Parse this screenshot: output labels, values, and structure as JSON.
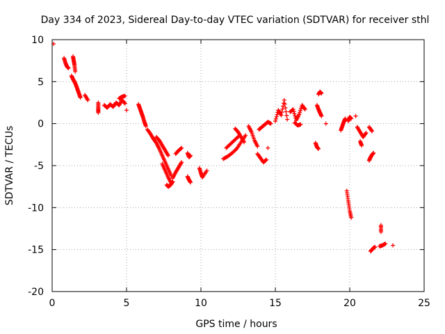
{
  "chart_data": {
    "type": "scatter",
    "title": "Day 334 of 2023, Sidereal Day-to-day VTEC variation (SDTVAR) for receiver sthl",
    "xlabel": "GPS time / hours",
    "ylabel": "SDTVAR / TECUs",
    "xlim": [
      0,
      25
    ],
    "ylim": [
      -20,
      10
    ],
    "xticks": [
      0,
      5,
      10,
      15,
      20,
      25
    ],
    "yticks": [
      -20,
      -15,
      -10,
      -5,
      0,
      5,
      10
    ],
    "grid": true,
    "marker": "+",
    "color": "#ff0000",
    "segments": [
      {
        "x": [
          0.1
        ],
        "y": [
          9.5
        ]
      },
      {
        "x": [
          0.8,
          0.9,
          1.0,
          1.1
        ],
        "y": [
          7.8,
          7.2,
          6.8,
          6.6
        ]
      },
      {
        "x": [
          1.3,
          1.4,
          1.5,
          1.6,
          1.7,
          1.8,
          1.9
        ],
        "y": [
          5.7,
          5.3,
          5.0,
          4.6,
          4.1,
          3.6,
          3.1
        ]
      },
      {
        "x": [
          1.4,
          1.45,
          1.5,
          1.55
        ],
        "y": [
          8.0,
          7.5,
          7.0,
          6.2
        ]
      },
      {
        "x": [
          2.2,
          2.4
        ],
        "y": [
          3.4,
          2.8
        ]
      },
      {
        "x": [
          3.1,
          3.1,
          3.1
        ],
        "y": [
          2.5,
          1.8,
          1.3
        ]
      },
      {
        "x": [
          3.5,
          3.7,
          3.9,
          4.1,
          4.3,
          4.5,
          4.7,
          4.9
        ],
        "y": [
          2.2,
          1.9,
          2.3,
          2.0,
          2.5,
          2.2,
          2.8,
          2.4
        ]
      },
      {
        "x": [
          4.5,
          4.7,
          4.9
        ],
        "y": [
          3.0,
          3.2,
          3.3
        ]
      },
      {
        "x": [
          5.0
        ],
        "y": [
          1.6
        ]
      },
      {
        "x": [
          5.8,
          5.9,
          6.0,
          6.1,
          6.2,
          6.3
        ],
        "y": [
          2.3,
          1.8,
          1.3,
          0.8,
          0.2,
          -0.3
        ]
      },
      {
        "x": [
          6.4,
          6.6,
          6.8,
          7.0,
          7.2,
          7.4,
          7.6,
          7.8,
          8.0
        ],
        "y": [
          -0.7,
          -1.2,
          -1.8,
          -2.3,
          -3.0,
          -3.8,
          -4.6,
          -5.4,
          -6.2
        ]
      },
      {
        "x": [
          7.0,
          7.2,
          7.4,
          7.6,
          7.8
        ],
        "y": [
          -1.6,
          -2.0,
          -2.6,
          -3.2,
          -3.8
        ]
      },
      {
        "x": [
          7.4,
          7.6,
          7.8,
          8.0
        ],
        "y": [
          -4.8,
          -5.6,
          -6.4,
          -7.1
        ]
      },
      {
        "x": [
          7.7,
          7.8,
          7.9,
          8.0,
          8.1
        ],
        "y": [
          -7.3,
          -7.5,
          -7.4,
          -7.2,
          -6.9
        ]
      },
      {
        "x": [
          8.1,
          8.3,
          8.5,
          8.7
        ],
        "y": [
          -6.5,
          -5.8,
          -5.2,
          -4.6
        ]
      },
      {
        "x": [
          8.3,
          8.5,
          8.7
        ],
        "y": [
          -3.6,
          -3.2,
          -2.9
        ]
      },
      {
        "x": [
          9.1,
          9.2,
          9.3
        ],
        "y": [
          -3.5,
          -4.0,
          -3.8
        ]
      },
      {
        "x": [
          9.1,
          9.2,
          9.3
        ],
        "y": [
          -6.3,
          -6.7,
          -7.0
        ]
      },
      {
        "x": [
          9.9,
          10.0,
          10.1,
          10.4
        ],
        "y": [
          -5.3,
          -5.9,
          -6.4,
          -5.6
        ]
      },
      {
        "x": [
          11.5,
          11.8,
          12.1,
          12.4,
          12.7,
          13.0
        ],
        "y": [
          -4.2,
          -3.9,
          -3.5,
          -3.0,
          -2.2,
          -1.4
        ]
      },
      {
        "x": [
          11.7,
          12.0,
          12.3,
          12.6
        ],
        "y": [
          -2.9,
          -2.4,
          -1.9,
          -1.4
        ]
      },
      {
        "x": [
          12.3,
          12.5,
          12.7,
          12.9
        ],
        "y": [
          -0.6,
          -1.0,
          -1.6,
          -2.2
        ]
      },
      {
        "x": [
          13.2,
          13.4,
          13.6,
          13.8
        ],
        "y": [
          -0.3,
          -1.0,
          -2.0,
          -2.7
        ]
      },
      {
        "x": [
          13.8,
          14.0,
          14.2,
          14.4
        ],
        "y": [
          -3.6,
          -4.1,
          -4.6,
          -4.3
        ]
      },
      {
        "x": [
          13.9,
          14.1,
          14.3,
          14.5,
          14.7
        ],
        "y": [
          -0.7,
          -0.4,
          -0.1,
          0.2,
          0.0
        ]
      },
      {
        "x": [
          14.5
        ],
        "y": [
          -2.9
        ]
      },
      {
        "x": [
          15.0,
          15.2,
          15.4,
          15.6,
          15.8
        ],
        "y": [
          0.3,
          1.6,
          1.0,
          2.8,
          0.5
        ]
      },
      {
        "x": [
          16.0,
          16.2,
          16.4,
          16.6,
          16.8,
          17.0
        ],
        "y": [
          1.4,
          1.7,
          0.4,
          1.1,
          2.2,
          1.7
        ]
      },
      {
        "x": [
          16.3,
          16.5,
          16.7
        ],
        "y": [
          0.1,
          -0.2,
          -0.1
        ]
      },
      {
        "x": [
          17.7,
          17.8,
          17.9
        ],
        "y": [
          -2.3,
          -2.8,
          -3.0
        ]
      },
      {
        "x": [
          17.8,
          17.9,
          18.0,
          18.1
        ],
        "y": [
          2.2,
          1.7,
          1.3,
          0.9
        ]
      },
      {
        "x": [
          17.9,
          18.0,
          18.1
        ],
        "y": [
          3.5,
          3.8,
          3.6
        ]
      },
      {
        "x": [
          18.4
        ],
        "y": [
          0.0
        ]
      },
      {
        "x": [
          19.4,
          19.5,
          19.6,
          19.7
        ],
        "y": [
          -0.8,
          -0.3,
          0.2,
          0.6
        ]
      },
      {
        "x": [
          19.9,
          20.0,
          20.1
        ],
        "y": [
          0.3,
          0.8,
          0.6
        ]
      },
      {
        "x": [
          19.8,
          19.9,
          20.0,
          20.1
        ],
        "y": [
          -8.0,
          -9.2,
          -10.4,
          -11.2
        ]
      },
      {
        "x": [
          20.4
        ],
        "y": [
          0.9
        ]
      },
      {
        "x": [
          20.5,
          20.7,
          20.9,
          21.1
        ],
        "y": [
          -0.4,
          -1.0,
          -1.6,
          -1.1
        ]
      },
      {
        "x": [
          20.7,
          20.8
        ],
        "y": [
          -2.1,
          -2.6
        ]
      },
      {
        "x": [
          21.3,
          21.5
        ],
        "y": [
          -0.4,
          -0.9
        ]
      },
      {
        "x": [
          21.3,
          21.4,
          21.5,
          21.6
        ],
        "y": [
          -4.4,
          -4.0,
          -3.7,
          -3.5
        ]
      },
      {
        "x": [
          21.4,
          21.5,
          21.6,
          21.7
        ],
        "y": [
          -15.2,
          -15.0,
          -14.8,
          -14.7
        ]
      },
      {
        "x": [
          22.0,
          22.2,
          22.4
        ],
        "y": [
          -14.6,
          -14.5,
          -14.3
        ]
      },
      {
        "x": [
          22.1,
          22.1
        ],
        "y": [
          -12.1,
          -12.9
        ]
      },
      {
        "x": [
          22.9
        ],
        "y": [
          -14.5
        ]
      }
    ]
  }
}
